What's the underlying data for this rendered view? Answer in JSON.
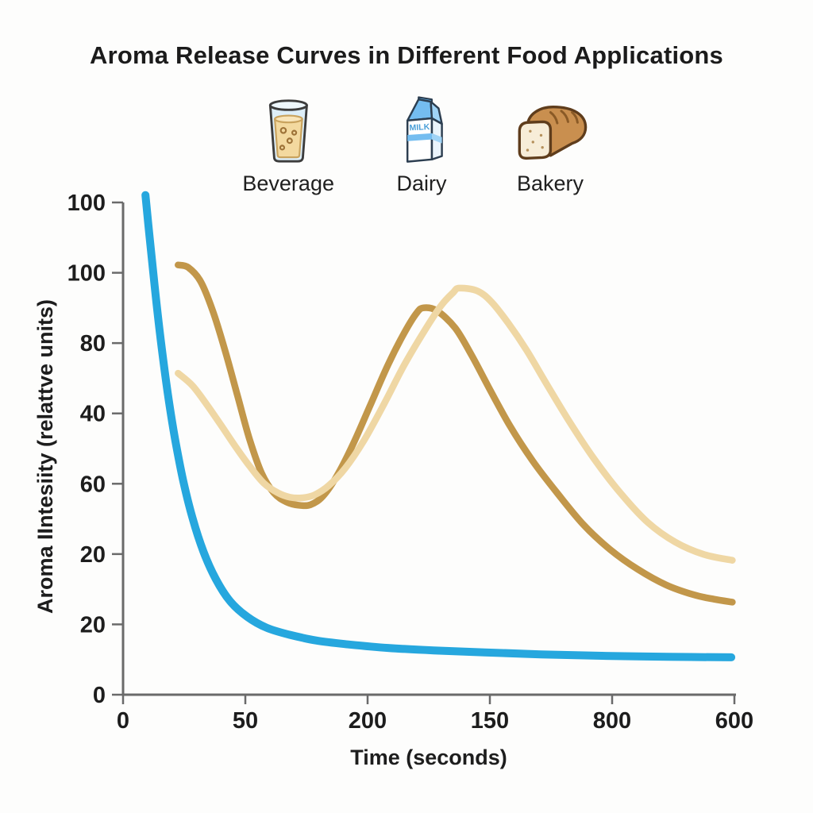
{
  "title": "Aroma Release Curves in Different Food Applications",
  "legend": {
    "items": [
      {
        "label": "Beverage",
        "icon": "beverage-glass-icon"
      },
      {
        "label": "Dairy",
        "icon": "milk-carton-icon",
        "carton_text": "MILK"
      },
      {
        "label": "Bakery",
        "icon": "bread-loaf-icon"
      }
    ]
  },
  "colors": {
    "beverage_line": "#26a7de",
    "dairy_line": "#c2974a",
    "bakery_line": "#efd7a4",
    "axis": "#6a6a6a",
    "text": "#1d1d1d",
    "background": "#fdfdfc"
  },
  "chart_data": {
    "type": "line",
    "title": "Aroma Release Curves in Different Food Applications",
    "xlabel": "Time (seconds)",
    "ylabel": "Aroma IIntesiity (relattve units)",
    "x_tick_labels": [
      "0",
      "50",
      "200",
      "150",
      "800",
      "600"
    ],
    "y_tick_labels": [
      "100",
      "100",
      "80",
      "40",
      "60",
      "20",
      "20",
      "0"
    ],
    "xlim": [
      0,
      600
    ],
    "ylim": [
      0,
      100
    ],
    "grid": false,
    "legend_position": "top",
    "series": [
      {
        "name": "Beverage",
        "color": "#26a7de",
        "width": 10,
        "points": [
          [
            22,
            101.5
          ],
          [
            26,
            93
          ],
          [
            31,
            83
          ],
          [
            37,
            72
          ],
          [
            44,
            61
          ],
          [
            51,
            52
          ],
          [
            59,
            43.5
          ],
          [
            68,
            36
          ],
          [
            79,
            29
          ],
          [
            91,
            23.5
          ],
          [
            105,
            19
          ],
          [
            122,
            15.8
          ],
          [
            141,
            13.6
          ],
          [
            163,
            12.2
          ],
          [
            190,
            11.0
          ],
          [
            222,
            10.2
          ],
          [
            260,
            9.5
          ],
          [
            305,
            9.0
          ],
          [
            355,
            8.6
          ],
          [
            410,
            8.2
          ],
          [
            470,
            7.9
          ],
          [
            535,
            7.7
          ],
          [
            597,
            7.6
          ]
        ]
      },
      {
        "name": "Dairy",
        "color": "#c2974a",
        "width": 8.5,
        "points": [
          [
            54,
            87.3
          ],
          [
            64,
            86.8
          ],
          [
            76,
            84
          ],
          [
            88,
            78
          ],
          [
            100,
            70
          ],
          [
            112,
            61
          ],
          [
            124,
            52
          ],
          [
            136,
            45
          ],
          [
            148,
            41
          ],
          [
            160,
            39.2
          ],
          [
            172,
            38.5
          ],
          [
            184,
            38.6
          ],
          [
            196,
            40.3
          ],
          [
            210,
            44.5
          ],
          [
            226,
            51
          ],
          [
            243,
            59
          ],
          [
            260,
            67
          ],
          [
            276,
            73.5
          ],
          [
            288,
            77.5
          ],
          [
            295,
            78.6
          ],
          [
            308,
            78
          ],
          [
            326,
            74.5
          ],
          [
            342,
            69
          ],
          [
            360,
            62
          ],
          [
            380,
            54.5
          ],
          [
            402,
            47.5
          ],
          [
            426,
            41
          ],
          [
            452,
            34.5
          ],
          [
            478,
            29.5
          ],
          [
            505,
            25.5
          ],
          [
            533,
            22.3
          ],
          [
            560,
            20.3
          ],
          [
            580,
            19.4
          ],
          [
            598,
            18.8
          ]
        ]
      },
      {
        "name": "Bakery",
        "color": "#efd7a4",
        "width": 8.5,
        "points": [
          [
            54,
            65.3
          ],
          [
            68,
            62.8
          ],
          [
            82,
            59
          ],
          [
            96,
            54.8
          ],
          [
            110,
            50.5
          ],
          [
            124,
            46.5
          ],
          [
            138,
            43
          ],
          [
            152,
            41
          ],
          [
            164,
            40.1
          ],
          [
            176,
            40.0
          ],
          [
            188,
            40.6
          ],
          [
            202,
            42.5
          ],
          [
            218,
            46
          ],
          [
            236,
            51.5
          ],
          [
            256,
            59
          ],
          [
            276,
            67
          ],
          [
            296,
            74
          ],
          [
            312,
            79
          ],
          [
            324,
            81.7
          ],
          [
            330,
            82.6
          ],
          [
            348,
            82
          ],
          [
            362,
            79.7
          ],
          [
            378,
            75.5
          ],
          [
            396,
            70
          ],
          [
            416,
            63
          ],
          [
            438,
            55.5
          ],
          [
            462,
            48
          ],
          [
            488,
            41
          ],
          [
            515,
            35
          ],
          [
            542,
            31
          ],
          [
            570,
            28.5
          ],
          [
            598,
            27.3
          ]
        ]
      }
    ]
  }
}
